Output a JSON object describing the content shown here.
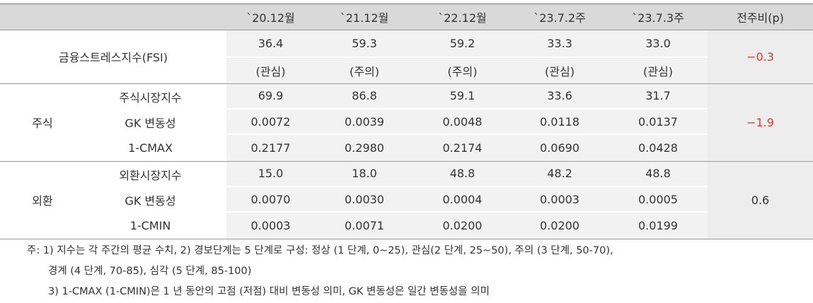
{
  "header": {
    "columns": [
      "`20.12월",
      "`21.12월",
      "`22.12월",
      "`23.7.2주",
      "`23.7.3주",
      "전주비(p)"
    ]
  },
  "sections": [
    {
      "label": "금융스트레스지수(FSI)",
      "change": "−0.3",
      "change_color": "#e8382f",
      "rows": [
        {
          "values": [
            "36.4",
            "59.3",
            "59.2",
            "33.3",
            "33.0"
          ]
        },
        {
          "values": [
            "(관심)",
            "(주의)",
            "(주의)",
            "(관심)",
            "(관심)"
          ]
        }
      ]
    },
    {
      "label": "주식",
      "change": "−1.9",
      "change_color": "#e8382f",
      "rows": [
        {
          "label": "주식시장지수",
          "values": [
            "69.9",
            "86.8",
            "59.1",
            "33.6",
            "31.7"
          ]
        },
        {
          "label": "GK 변동성",
          "values": [
            "0.0072",
            "0.0039",
            "0.0048",
            "0.0118",
            "0.0137"
          ]
        },
        {
          "label": "1-CMAX",
          "values": [
            "0.2177",
            "0.2980",
            "0.2174",
            "0.0690",
            "0.0428"
          ]
        }
      ]
    },
    {
      "label": "외환",
      "change": "0.6",
      "change_color": "#333333",
      "rows": [
        {
          "label": "외환시장지수",
          "values": [
            "15.0",
            "18.0",
            "48.8",
            "48.2",
            "48.8"
          ]
        },
        {
          "label": "GK 변동성",
          "values": [
            "0.0070",
            "0.0030",
            "0.0004",
            "0.0003",
            "0.0005"
          ]
        },
        {
          "label": "1-CMIN",
          "values": [
            "0.0003",
            "0.0071",
            "0.0200",
            "0.0200",
            "0.0199"
          ]
        }
      ]
    }
  ],
  "notes": [
    "주: 1) 지수는 각 주간의 평균 수치, 2) 경보단계는 5 단계로 구성: 정상 (1 단계, 0~25), 관심(2 단계, 25~50), 주의 (3 단계, 50-70),",
    "경계 (4 단계, 70-85), 심각 (5 단계, 85-100)",
    "3) 1-CMAX (1-CMIN)은 1 년 동안의 고점 (저점) 대비 변동성 의미, GK 변동성은 일간 변동성을 의미"
  ]
}
